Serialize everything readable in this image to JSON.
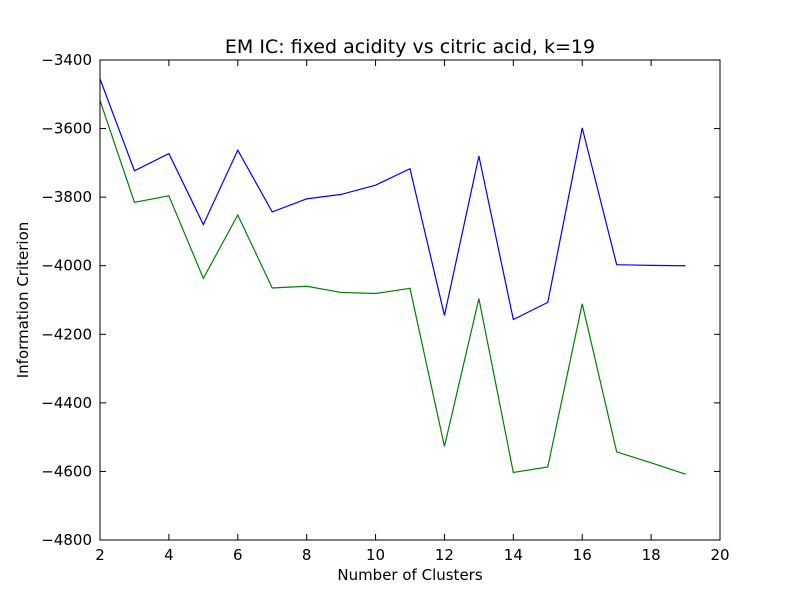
{
  "chart_data": {
    "type": "line",
    "title": "EM IC: fixed acidity vs citric acid, k=19",
    "xlabel": "Number of Clusters",
    "ylabel": "Information Criterion",
    "xlim": [
      2,
      20
    ],
    "ylim": [
      -4800,
      -3400
    ],
    "xticks": [
      2,
      4,
      6,
      8,
      10,
      12,
      14,
      16,
      18,
      20
    ],
    "yticks": [
      -4800,
      -4600,
      -4400,
      -4200,
      -4000,
      -3800,
      -3600,
      -3400
    ],
    "grid": false,
    "legend": "none",
    "x": [
      2,
      3,
      4,
      5,
      6,
      7,
      8,
      9,
      10,
      11,
      12,
      13,
      14,
      15,
      16,
      17,
      18,
      19
    ],
    "series": [
      {
        "color": "#0000ff",
        "values": [
          -3455,
          -3723,
          -3673,
          -3880,
          -3663,
          -3843,
          -3805,
          -3792,
          -3765,
          -3717,
          -4145,
          -3680,
          -4157,
          -4107,
          -3598,
          -3997,
          -3999,
          -4000
        ]
      },
      {
        "color": "#008000",
        "values": [
          -3518,
          -3815,
          -3796,
          -4037,
          -3852,
          -4065,
          -4060,
          -4078,
          -4081,
          -4066,
          -4527,
          -4096,
          -4603,
          -4587,
          -4111,
          -4543,
          -4575,
          -4608
        ]
      }
    ]
  }
}
